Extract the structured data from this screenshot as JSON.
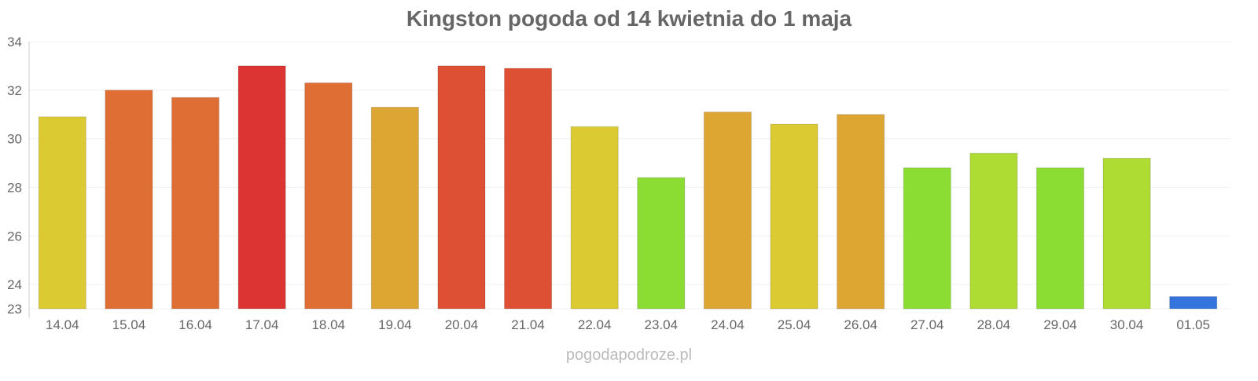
{
  "chart_data": {
    "type": "bar",
    "title": "Kingston pogoda od 14 kwietnia do 1 maja",
    "xlabel": "",
    "ylabel": "",
    "ylim": [
      23,
      34
    ],
    "yticks": [
      23,
      24,
      26,
      28,
      30,
      32,
      34
    ],
    "grid": true,
    "categories": [
      "14.04",
      "15.04",
      "16.04",
      "17.04",
      "18.04",
      "19.04",
      "20.04",
      "21.04",
      "22.04",
      "23.04",
      "24.04",
      "25.04",
      "26.04",
      "27.04",
      "28.04",
      "29.04",
      "30.04",
      "01.05"
    ],
    "values": [
      30.9,
      32.0,
      31.7,
      33.0,
      32.3,
      31.3,
      33.0,
      32.9,
      30.5,
      28.4,
      31.1,
      30.6,
      31.0,
      28.8,
      29.4,
      28.8,
      29.2,
      23.5
    ],
    "colors": [
      "#dcca32",
      "#de6e33",
      "#de6e33",
      "#dc3333",
      "#de6e33",
      "#dda633",
      "#dd5033",
      "#dd5033",
      "#dcca32",
      "#8bdc33",
      "#dda633",
      "#dcca32",
      "#dda633",
      "#8bdc33",
      "#afdc33",
      "#8bdc33",
      "#afdc33",
      "#3375dc"
    ]
  },
  "watermark": "pogodapodroze.pl"
}
